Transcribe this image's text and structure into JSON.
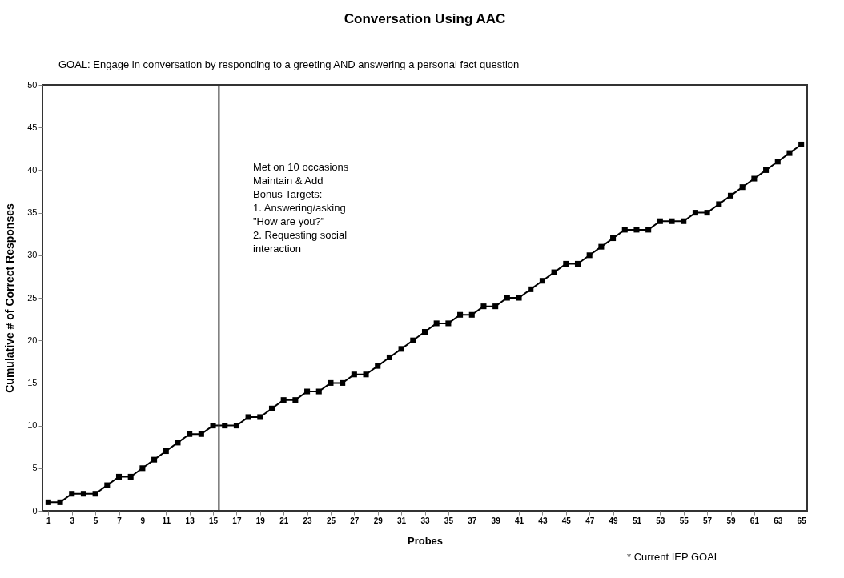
{
  "chart_data": {
    "type": "line",
    "title": "Conversation Using AAC",
    "xlabel": "Probes",
    "ylabel": "Cumulative # of Correct Responses",
    "x": [
      1,
      2,
      3,
      4,
      5,
      6,
      7,
      8,
      9,
      10,
      11,
      12,
      13,
      14,
      15,
      16,
      17,
      18,
      19,
      20,
      21,
      22,
      23,
      24,
      25,
      26,
      27,
      28,
      29,
      30,
      31,
      32,
      33,
      34,
      35,
      36,
      37,
      38,
      39,
      40,
      41,
      42,
      43,
      44,
      45,
      46,
      47,
      48,
      49,
      50,
      51,
      52,
      53,
      54,
      55,
      56,
      57,
      58,
      59,
      60,
      61,
      62,
      63,
      64,
      65
    ],
    "series": [
      {
        "color": "#000000",
        "values": [
          1,
          1,
          2,
          2,
          2,
          3,
          4,
          4,
          5,
          6,
          7,
          8,
          9,
          9,
          10,
          10,
          10,
          11,
          11,
          12,
          13,
          13,
          14,
          14,
          15,
          15,
          16,
          16,
          17,
          18,
          19,
          20,
          21,
          22,
          22,
          23,
          23,
          24,
          24,
          25,
          25,
          26,
          27,
          28,
          29,
          29,
          30,
          31,
          32,
          33,
          33,
          33,
          34,
          34,
          34,
          35,
          35,
          36,
          37,
          38,
          39,
          40,
          41,
          42,
          43
        ]
      }
    ],
    "xlim": [
      0.5,
      65.5
    ],
    "xticks": [
      1,
      3,
      5,
      7,
      9,
      11,
      13,
      15,
      17,
      19,
      21,
      23,
      25,
      27,
      29,
      31,
      33,
      35,
      37,
      39,
      41,
      43,
      45,
      47,
      49,
      51,
      53,
      55,
      57,
      59,
      61,
      63,
      65
    ],
    "ylim": [
      0,
      50
    ],
    "yticks": [
      0,
      5,
      10,
      15,
      20,
      25,
      30,
      35,
      40,
      45,
      50
    ],
    "ref_lines": [
      {
        "axis": "x",
        "value": 15.5,
        "color": "#333333"
      }
    ],
    "annotations": [
      "GOAL:  Engage in conversation by responding to a greeting AND answering a personal fact question",
      "Met on 10 occasions\n\nMaintain & Add\nBonus Targets:\n1.  Answering/asking\n\"How are you?\"\n2.  Requesting social\ninteraction",
      "* Current IEP GOAL"
    ],
    "marker": "square",
    "line_style": "solid",
    "grid": false
  }
}
